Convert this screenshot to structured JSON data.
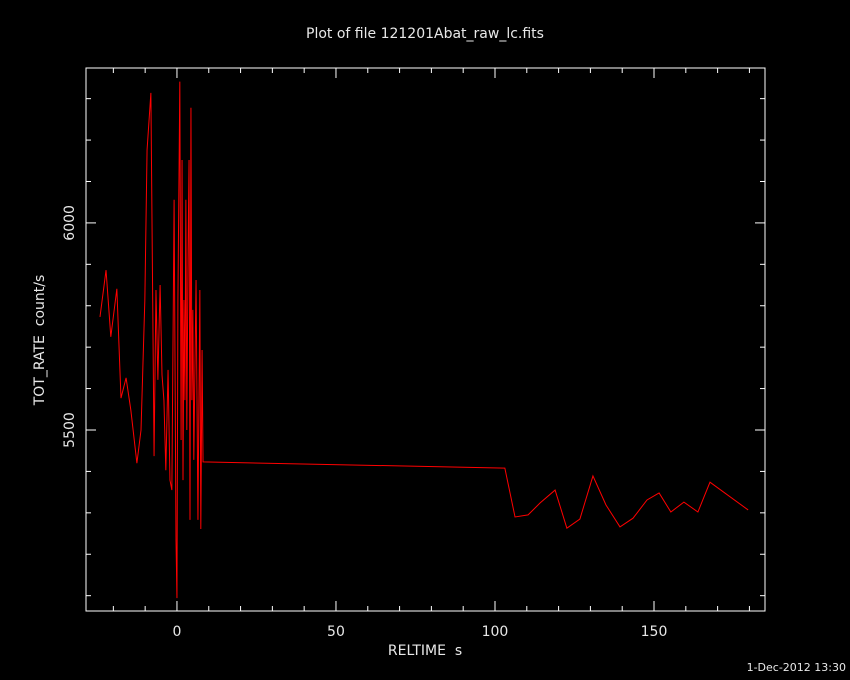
{
  "chart_data": {
    "type": "line",
    "title": "Plot of file 121201Abat_raw_lc.fits",
    "x_label": "RELTIME  s",
    "y_label": "TOT_RATE  count/s",
    "footer": "1-Dec-2012 13:30",
    "xlim": [
      -28.6,
      184.9
    ],
    "ylim": [
      5063,
      6374
    ],
    "xticks": [
      0,
      50,
      100,
      150
    ],
    "yticks": [
      5500,
      6000
    ],
    "xminorticks": [
      -20,
      -10,
      10,
      20,
      30,
      40,
      60,
      70,
      80,
      90,
      110,
      120,
      130,
      140,
      160,
      170,
      180
    ],
    "yminorticks": [
      5100,
      5200,
      5300,
      5400,
      5600,
      5700,
      5800,
      5900,
      6100,
      6200,
      6300
    ],
    "x": [
      -24.2,
      -22.3,
      -20.8,
      -18.9,
      -17.6,
      -16.0,
      -14.5,
      -12.6,
      -11.3,
      -10.1,
      -9.4,
      -8.2,
      -7.2,
      -6.6,
      -6.0,
      -5.3,
      -4.7,
      -4.1,
      -3.5,
      -2.8,
      -2.2,
      -1.6,
      -0.9,
      -0.3,
      0,
      0.3,
      0.9,
      1.3,
      1.6,
      1.9,
      2.2,
      2.5,
      2.8,
      3.1,
      3.5,
      3.8,
      4.1,
      4.4,
      4.7,
      5.0,
      5.3,
      6.0,
      6.6,
      7.2,
      7.5,
      7.9,
      8.2,
      103.1,
      106.3,
      110.4,
      114.2,
      118.9,
      122.6,
      126.7,
      130.8,
      134.9,
      139.3,
      143.4,
      147.8,
      151.6,
      155.3,
      159.4,
      163.8,
      167.6,
      179.6
    ],
    "series": [
      {
        "name": "TOT_RATE",
        "color": "#ff0000",
        "values": [
          5773,
          5886,
          5725,
          5841,
          5577,
          5626,
          5548,
          5420,
          5500,
          5814,
          6176,
          6314,
          5437,
          5838,
          5621,
          5850,
          5633,
          5572,
          5403,
          5645,
          5379,
          5355,
          6056,
          5234,
          5094,
          5814,
          6341,
          5476,
          6152,
          5379,
          5814,
          5572,
          6056,
          5500,
          5935,
          6152,
          5283,
          6278,
          5572,
          5790,
          5428,
          5862,
          5283,
          5838,
          5261,
          5693,
          5423,
          5408,
          5290,
          5295,
          5324,
          5355,
          5263,
          5285,
          5389,
          5319,
          5266,
          5287,
          5331,
          5348,
          5302,
          5326,
          5302,
          5374,
          5307
        ]
      }
    ]
  }
}
